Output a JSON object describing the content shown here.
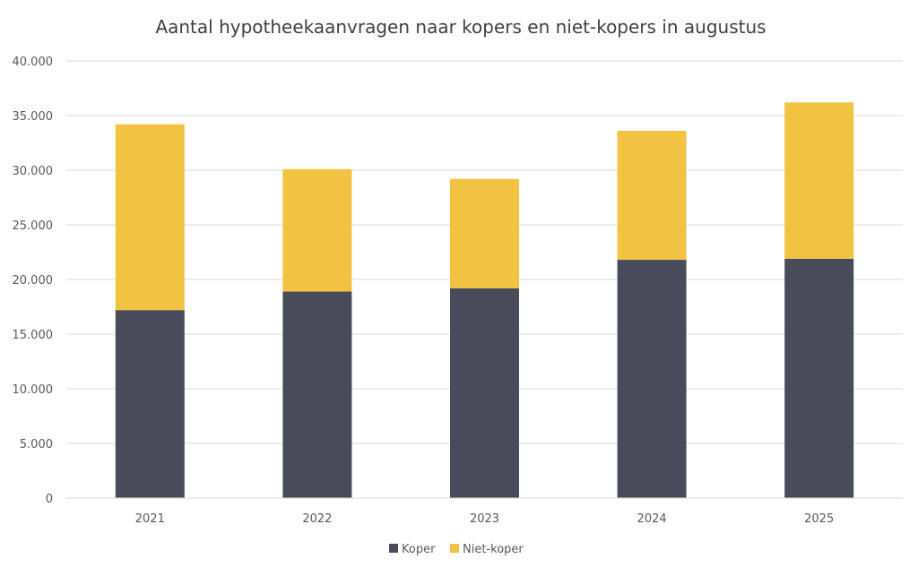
{
  "chart_data": {
    "type": "bar",
    "stacked": true,
    "title": "Aantal hypotheekaanvragen  naar kopers en niet-kopers in augustus",
    "xlabel": "",
    "ylabel": "",
    "categories": [
      "2021",
      "2022",
      "2023",
      "2024",
      "2025"
    ],
    "series": [
      {
        "name": "Koper",
        "color": "#484c5a",
        "values": [
          17200,
          18900,
          19200,
          21800,
          21900
        ]
      },
      {
        "name": "Niet-koper",
        "color": "#f2c243",
        "values": [
          17000,
          11200,
          10000,
          11800,
          14300
        ]
      }
    ],
    "ylim": [
      0,
      40000
    ],
    "yticks": [
      0,
      5000,
      10000,
      15000,
      20000,
      25000,
      30000,
      35000,
      40000
    ],
    "ytick_labels": [
      "0",
      "5.000",
      "10.000",
      "15.000",
      "20.000",
      "25.000",
      "30.000",
      "35.000",
      "40.000"
    ],
    "grid": true,
    "legend_position": "bottom"
  }
}
